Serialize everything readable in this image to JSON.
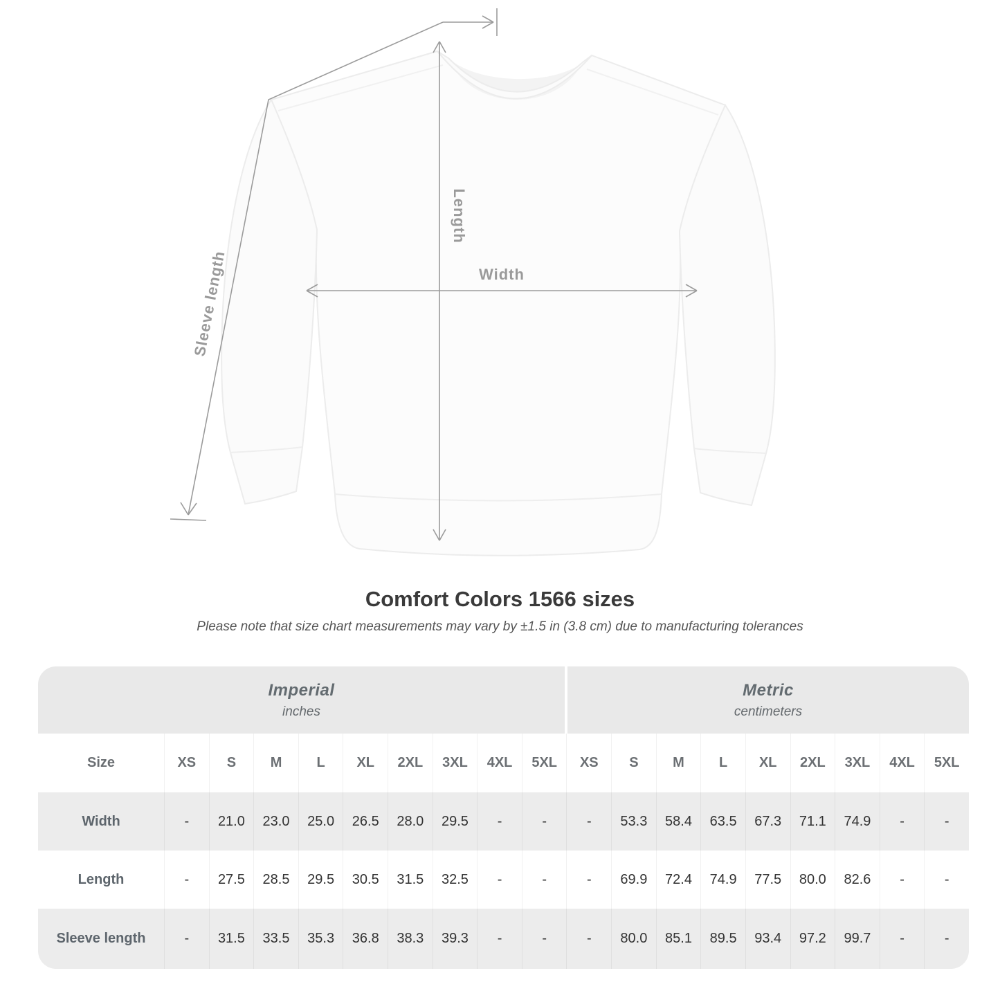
{
  "diagram": {
    "sleeve_label": "Sleeve length",
    "length_label": "Length",
    "width_label": "Width"
  },
  "title": "Comfort Colors 1566 sizes",
  "subtitle": "Please note that size chart measurements may vary by ±1.5 in (3.8 cm) due to manufacturing tolerances",
  "table": {
    "unit_groups": [
      {
        "name": "Imperial",
        "unit": "inches"
      },
      {
        "name": "Metric",
        "unit": "centimeters"
      }
    ],
    "size_label": "Size",
    "sizes": [
      "XS",
      "S",
      "M",
      "L",
      "XL",
      "2XL",
      "3XL",
      "4XL",
      "5XL"
    ],
    "rows": [
      {
        "label": "Width",
        "imperial": [
          "-",
          "21.0",
          "23.0",
          "25.0",
          "26.5",
          "28.0",
          "29.5",
          "-",
          "-"
        ],
        "metric": [
          "-",
          "53.3",
          "58.4",
          "63.5",
          "67.3",
          "71.1",
          "74.9",
          "-",
          "-"
        ]
      },
      {
        "label": "Length",
        "imperial": [
          "-",
          "27.5",
          "28.5",
          "29.5",
          "30.5",
          "31.5",
          "32.5",
          "-",
          "-"
        ],
        "metric": [
          "-",
          "69.9",
          "72.4",
          "74.9",
          "77.5",
          "80.0",
          "82.6",
          "-",
          "-"
        ]
      },
      {
        "label": "Sleeve length",
        "imperial": [
          "-",
          "31.5",
          "33.5",
          "35.3",
          "36.8",
          "38.3",
          "39.3",
          "-",
          "-"
        ],
        "metric": [
          "-",
          "80.0",
          "85.1",
          "89.5",
          "93.4",
          "97.2",
          "99.7",
          "-",
          "-"
        ]
      }
    ]
  },
  "colors": {
    "measure_line": "#9b9b9b",
    "measure_label": "#9a9a9a",
    "title": "#3a3a3a",
    "subtitle": "#555555",
    "band_bg": "#e9e9e9",
    "stripe_bg": "#ececec",
    "garment_stroke": "#ececec",
    "garment_fill": "#fcfcfc"
  }
}
